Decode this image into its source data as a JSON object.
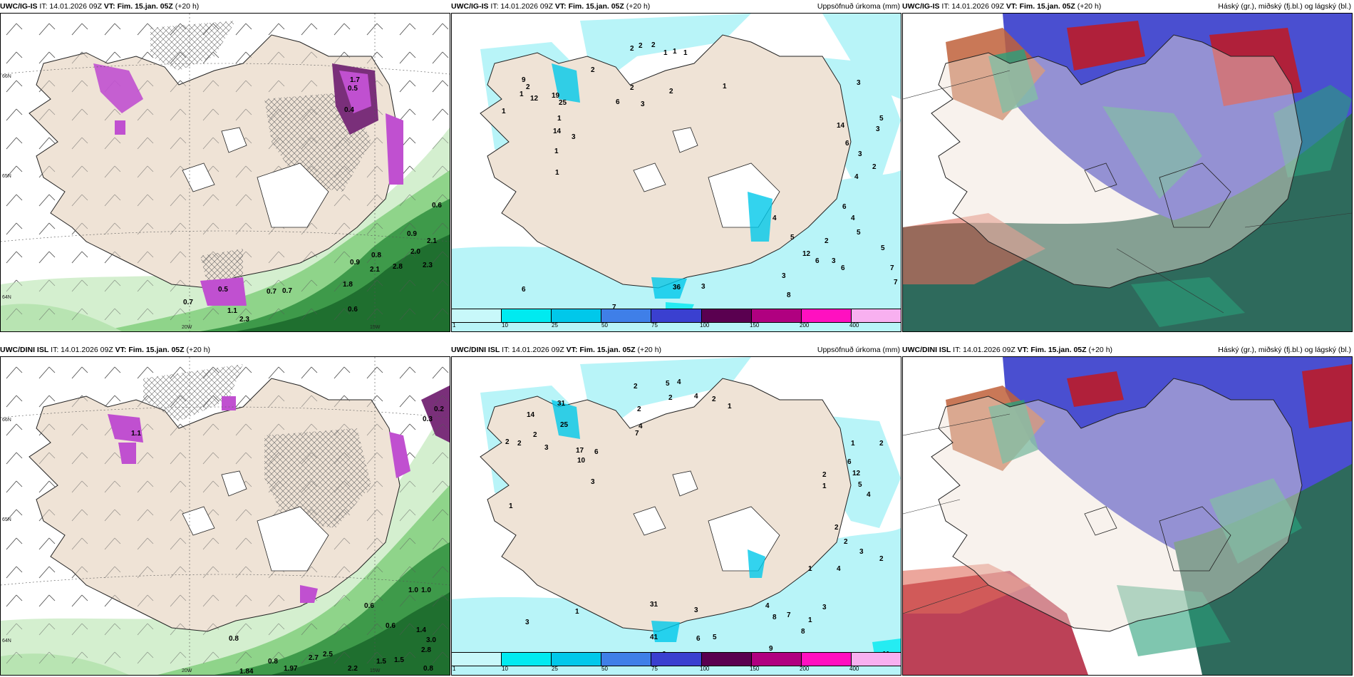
{
  "panels": [
    {
      "id": "p1",
      "type": "wind",
      "model": "UWC/IG-IS",
      "it": "IT: 14.01.2026 09Z",
      "vt_label": "VT:",
      "vt": "Fim. 15.jan. 05Z",
      "lead": "(+20 h)",
      "right_title": "",
      "ticks": [
        "20W",
        "15W",
        "66N",
        "65N",
        "64N"
      ],
      "labels": [
        "0.6",
        "0.9",
        "2.1",
        "2.0",
        "0.8",
        "2.3",
        "0.9",
        "2.1",
        "2.8",
        "1.8",
        "0.7",
        "0.7",
        "0.7",
        "1.1",
        "0.6",
        "2.3",
        "0.5",
        "1.7",
        "0.4",
        "0.5"
      ]
    },
    {
      "id": "p2",
      "type": "precip",
      "model": "UWC/IG-IS",
      "it": "IT: 14.01.2026 09Z",
      "vt_label": "VT:",
      "vt": "Fim. 15.jan. 05Z",
      "lead": "(+20 h)",
      "right_title": "Uppsöfnuð úrkoma (mm)",
      "labels": [
        "2",
        "2",
        "2",
        "1",
        "1",
        "1",
        "9",
        "2",
        "1",
        "1",
        "12",
        "19",
        "25",
        "14",
        "3",
        "2",
        "1",
        "1",
        "1",
        "6",
        "2",
        "2",
        "3",
        "1",
        "3",
        "14",
        "6",
        "3",
        "4",
        "2",
        "5",
        "3",
        "6",
        "4",
        "5",
        "2",
        "3",
        "5",
        "12",
        "6",
        "6",
        "7",
        "7",
        "3",
        "19",
        "36",
        "4",
        "5",
        "6",
        "7",
        "8",
        "3",
        "9"
      ]
    },
    {
      "id": "p3",
      "type": "cloud",
      "model": "UWC/IG-IS",
      "it": "IT: 14.01.2026 09Z",
      "vt_label": "VT:",
      "vt": "Fim. 15.jan. 05Z",
      "lead": "(+20 h)",
      "right_title": "Háský (gr.), miðský (fj.bl.) og lágský (bl.)",
      "labels": []
    },
    {
      "id": "p4",
      "type": "wind",
      "model": "UWC/DINI ISL",
      "it": "IT: 14.01.2026 09Z",
      "vt_label": "VT:",
      "vt": "Fim. 15.jan. 05Z",
      "lead": "(+20 h)",
      "right_title": "",
      "ticks": [
        "20W",
        "15W",
        "66N",
        "65N",
        "64N"
      ],
      "labels": [
        "0.2",
        "0.3",
        "1.0",
        "1.0",
        "0.6",
        "1.4",
        "3.0",
        "2.8",
        "0.8",
        "2.5",
        "2.7",
        "2.2",
        "1.5",
        "1.5",
        "1.97",
        "0.8",
        "1.84",
        "0.8",
        "0.6",
        "1.1"
      ]
    },
    {
      "id": "p5",
      "type": "precip",
      "model": "UWC/DINI ISL",
      "it": "IT: 14.01.2026 09Z",
      "vt_label": "VT:",
      "vt": "Fim. 15.jan. 05Z",
      "lead": "(+20 h)",
      "right_title": "Uppsöfnuð úrkoma (mm)",
      "labels": [
        "2",
        "5",
        "4",
        "2",
        "4",
        "2",
        "2",
        "1",
        "31",
        "14",
        "25",
        "17",
        "10",
        "6",
        "7",
        "4",
        "3",
        "2",
        "2",
        "1",
        "2",
        "3",
        "1",
        "2",
        "6",
        "12",
        "5",
        "4",
        "2",
        "1",
        "2",
        "2",
        "3",
        "4",
        "2",
        "1",
        "41",
        "31",
        "6",
        "3",
        "5",
        "4",
        "8",
        "7",
        "9",
        "11",
        "6",
        "3",
        "1",
        "3",
        "1",
        "8"
      ]
    },
    {
      "id": "p6",
      "type": "cloud",
      "model": "UWC/DINI ISL",
      "it": "IT: 14.01.2026 09Z",
      "vt_label": "VT:",
      "vt": "Fim. 15.jan. 05Z",
      "lead": "(+20 h)",
      "right_title": "Háský (gr.), miðský (fj.bl.) og lágský (bl.)",
      "labels": []
    }
  ],
  "colorbar": {
    "labels": [
      "1",
      "10",
      "25",
      "50",
      "75",
      "100",
      "150",
      "200",
      "400"
    ],
    "colors": [
      "#c8f8fa",
      "#00eaf0",
      "#00c8ea",
      "#3f7fe8",
      "#3a40d0",
      "#5a0050",
      "#b00080",
      "#ff10c0",
      "#f8b0f0"
    ]
  },
  "colors": {
    "land": "#efe3d6",
    "sea_light": "#e8f5e4",
    "green_mid": "#8fd48a",
    "green_dark": "#1f6f2f",
    "magenta": "#c050d0",
    "precip_cyan": "#b8f4f8",
    "cloud_blue": "#4a4fd0",
    "cloud_teal": "#2e6a5c",
    "cloud_red": "#b0203a"
  }
}
